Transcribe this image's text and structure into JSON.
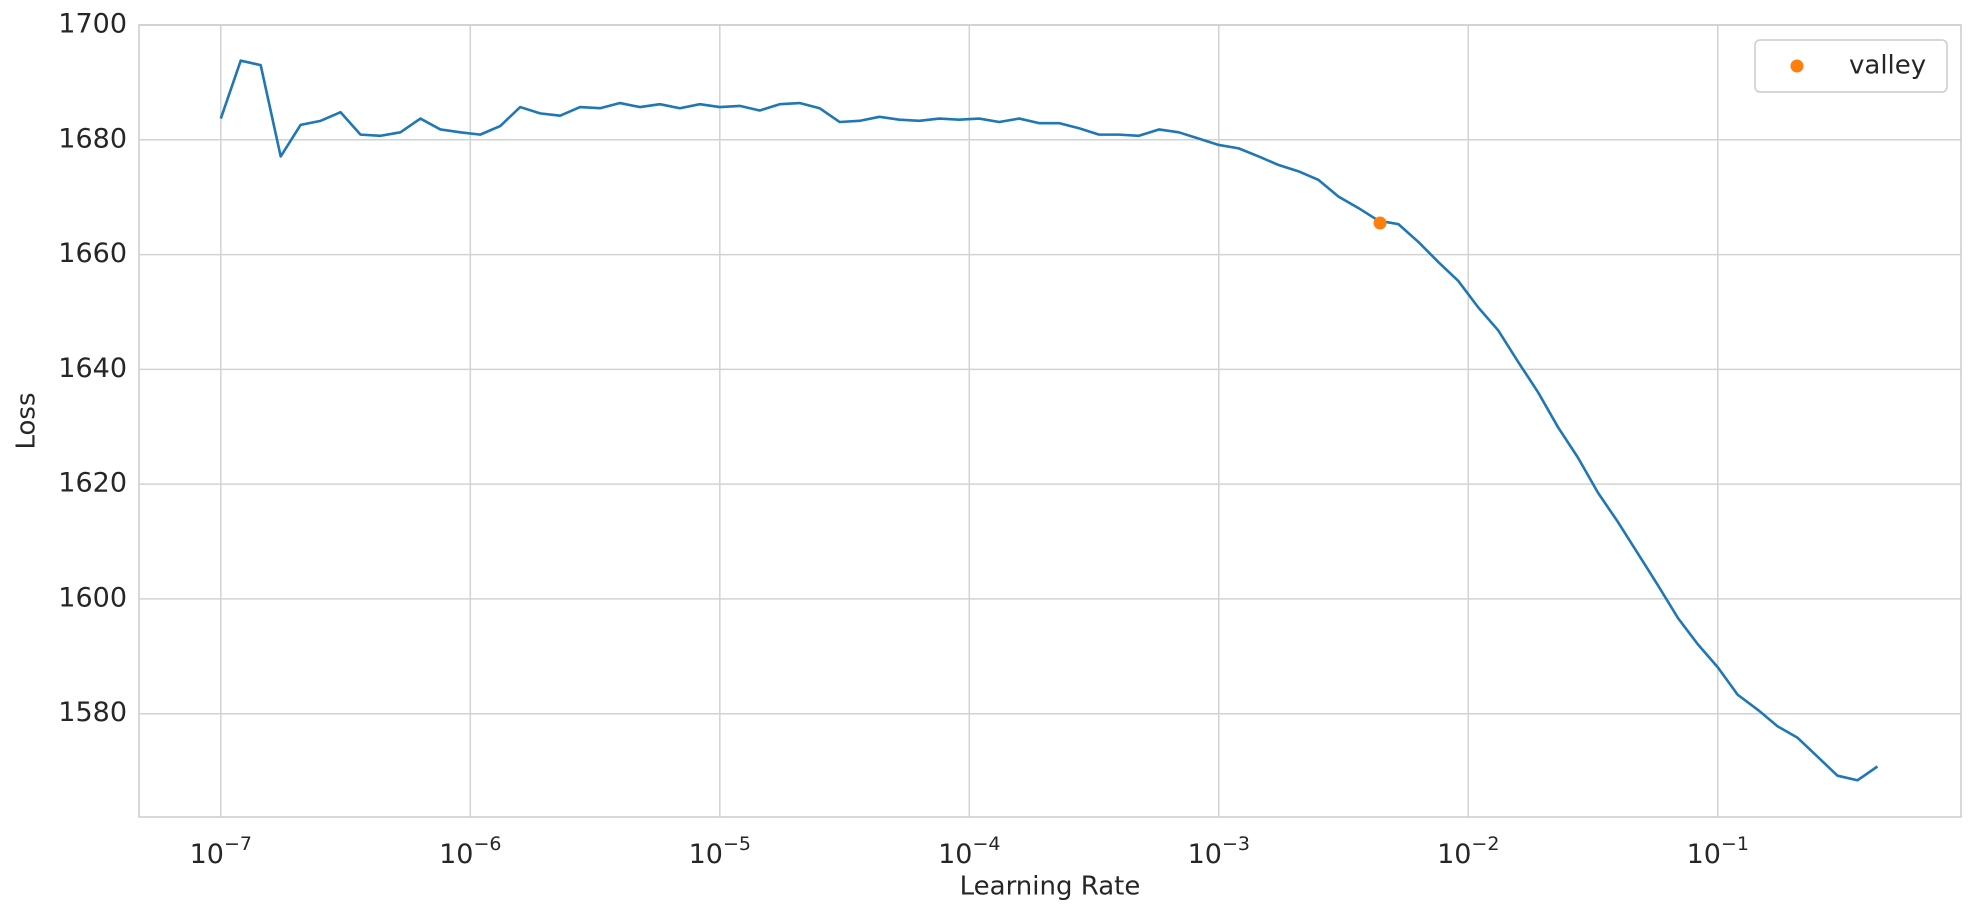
{
  "chart_data": {
    "type": "line",
    "xlabel": "Learning Rate",
    "ylabel": "Loss",
    "xscale": "log",
    "grid": true,
    "legend": "upper right",
    "xlim": [
      4.7e-08,
      0.944
    ],
    "ylim": [
      1562,
      1700
    ],
    "xticks": [
      {
        "value": 1e-07,
        "label": "10−7"
      },
      {
        "value": 1e-06,
        "label": "10−6"
      },
      {
        "value": 1e-05,
        "label": "10−5"
      },
      {
        "value": 0.0001,
        "label": "10−4"
      },
      {
        "value": 0.001,
        "label": "10−3"
      },
      {
        "value": 0.01,
        "label": "10−2"
      },
      {
        "value": 0.1,
        "label": "10−1"
      }
    ],
    "yticks": [
      1580,
      1600,
      1620,
      1640,
      1660,
      1680,
      1700
    ],
    "x": [
      1e-07,
      1.202e-07,
      1.445e-07,
      1.738e-07,
      2.089e-07,
      2.512e-07,
      3.02e-07,
      3.631e-07,
      4.365e-07,
      5.248e-07,
      6.31e-07,
      7.586e-07,
      9.12e-07,
      1.096e-06,
      1.318e-06,
      1.585e-06,
      1.905e-06,
      2.291e-06,
      2.754e-06,
      3.311e-06,
      3.981e-06,
      4.786e-06,
      5.754e-06,
      6.918e-06,
      8.318e-06,
      1e-05,
      1.202e-05,
      1.445e-05,
      1.738e-05,
      2.089e-05,
      2.512e-05,
      3.02e-05,
      3.631e-05,
      4.365e-05,
      5.248e-05,
      6.31e-05,
      7.586e-05,
      9.12e-05,
      0.0001096,
      0.0001318,
      0.0001585,
      0.0001905,
      0.0002291,
      0.0002754,
      0.0003311,
      0.0003981,
      0.0004786,
      0.0005754,
      0.0006918,
      0.0008318,
      0.001,
      0.001202,
      0.001445,
      0.001738,
      0.002089,
      0.002512,
      0.00302,
      0.003631,
      0.004365,
      0.005248,
      0.00631,
      0.007586,
      0.00912,
      0.01096,
      0.01318,
      0.01585,
      0.01905,
      0.02291,
      0.02754,
      0.03311,
      0.03981,
      0.04786,
      0.05754,
      0.06918,
      0.08318,
      0.1,
      0.1202,
      0.1445,
      0.1738,
      0.2089,
      0.2512,
      0.302,
      0.3631,
      0.4365
    ],
    "series": [
      {
        "color": "#1f77b4",
        "values": [
          1683.7,
          1693.8,
          1693.0,
          1677.1,
          1682.6,
          1683.3,
          1684.8,
          1680.9,
          1680.7,
          1681.3,
          1683.7,
          1681.8,
          1681.3,
          1680.9,
          1682.4,
          1685.7,
          1684.6,
          1684.2,
          1685.7,
          1685.5,
          1686.4,
          1685.7,
          1686.2,
          1685.5,
          1686.2,
          1685.7,
          1685.9,
          1685.1,
          1686.2,
          1686.4,
          1685.5,
          1683.1,
          1683.3,
          1684.0,
          1683.5,
          1683.3,
          1683.7,
          1683.5,
          1683.7,
          1683.1,
          1683.7,
          1682.9,
          1682.9,
          1682.0,
          1680.9,
          1680.9,
          1680.7,
          1681.8,
          1681.3,
          1680.2,
          1679.1,
          1678.5,
          1677.1,
          1675.6,
          1674.5,
          1673.0,
          1670.1,
          1668.1,
          1665.9,
          1665.3,
          1662.2,
          1658.7,
          1655.4,
          1650.8,
          1646.8,
          1641.3,
          1636.0,
          1629.9,
          1624.6,
          1618.5,
          1613.4,
          1607.9,
          1602.4,
          1596.7,
          1592.1,
          1588.1,
          1583.3,
          1580.7,
          1577.8,
          1575.8,
          1572.5,
          1569.2,
          1568.4,
          1570.8
        ]
      },
      {
        "name": "valley",
        "type": "scatter",
        "color": "#ff7f0e",
        "x": [
          0.00443
        ],
        "values": [
          1665.5
        ]
      }
    ]
  }
}
